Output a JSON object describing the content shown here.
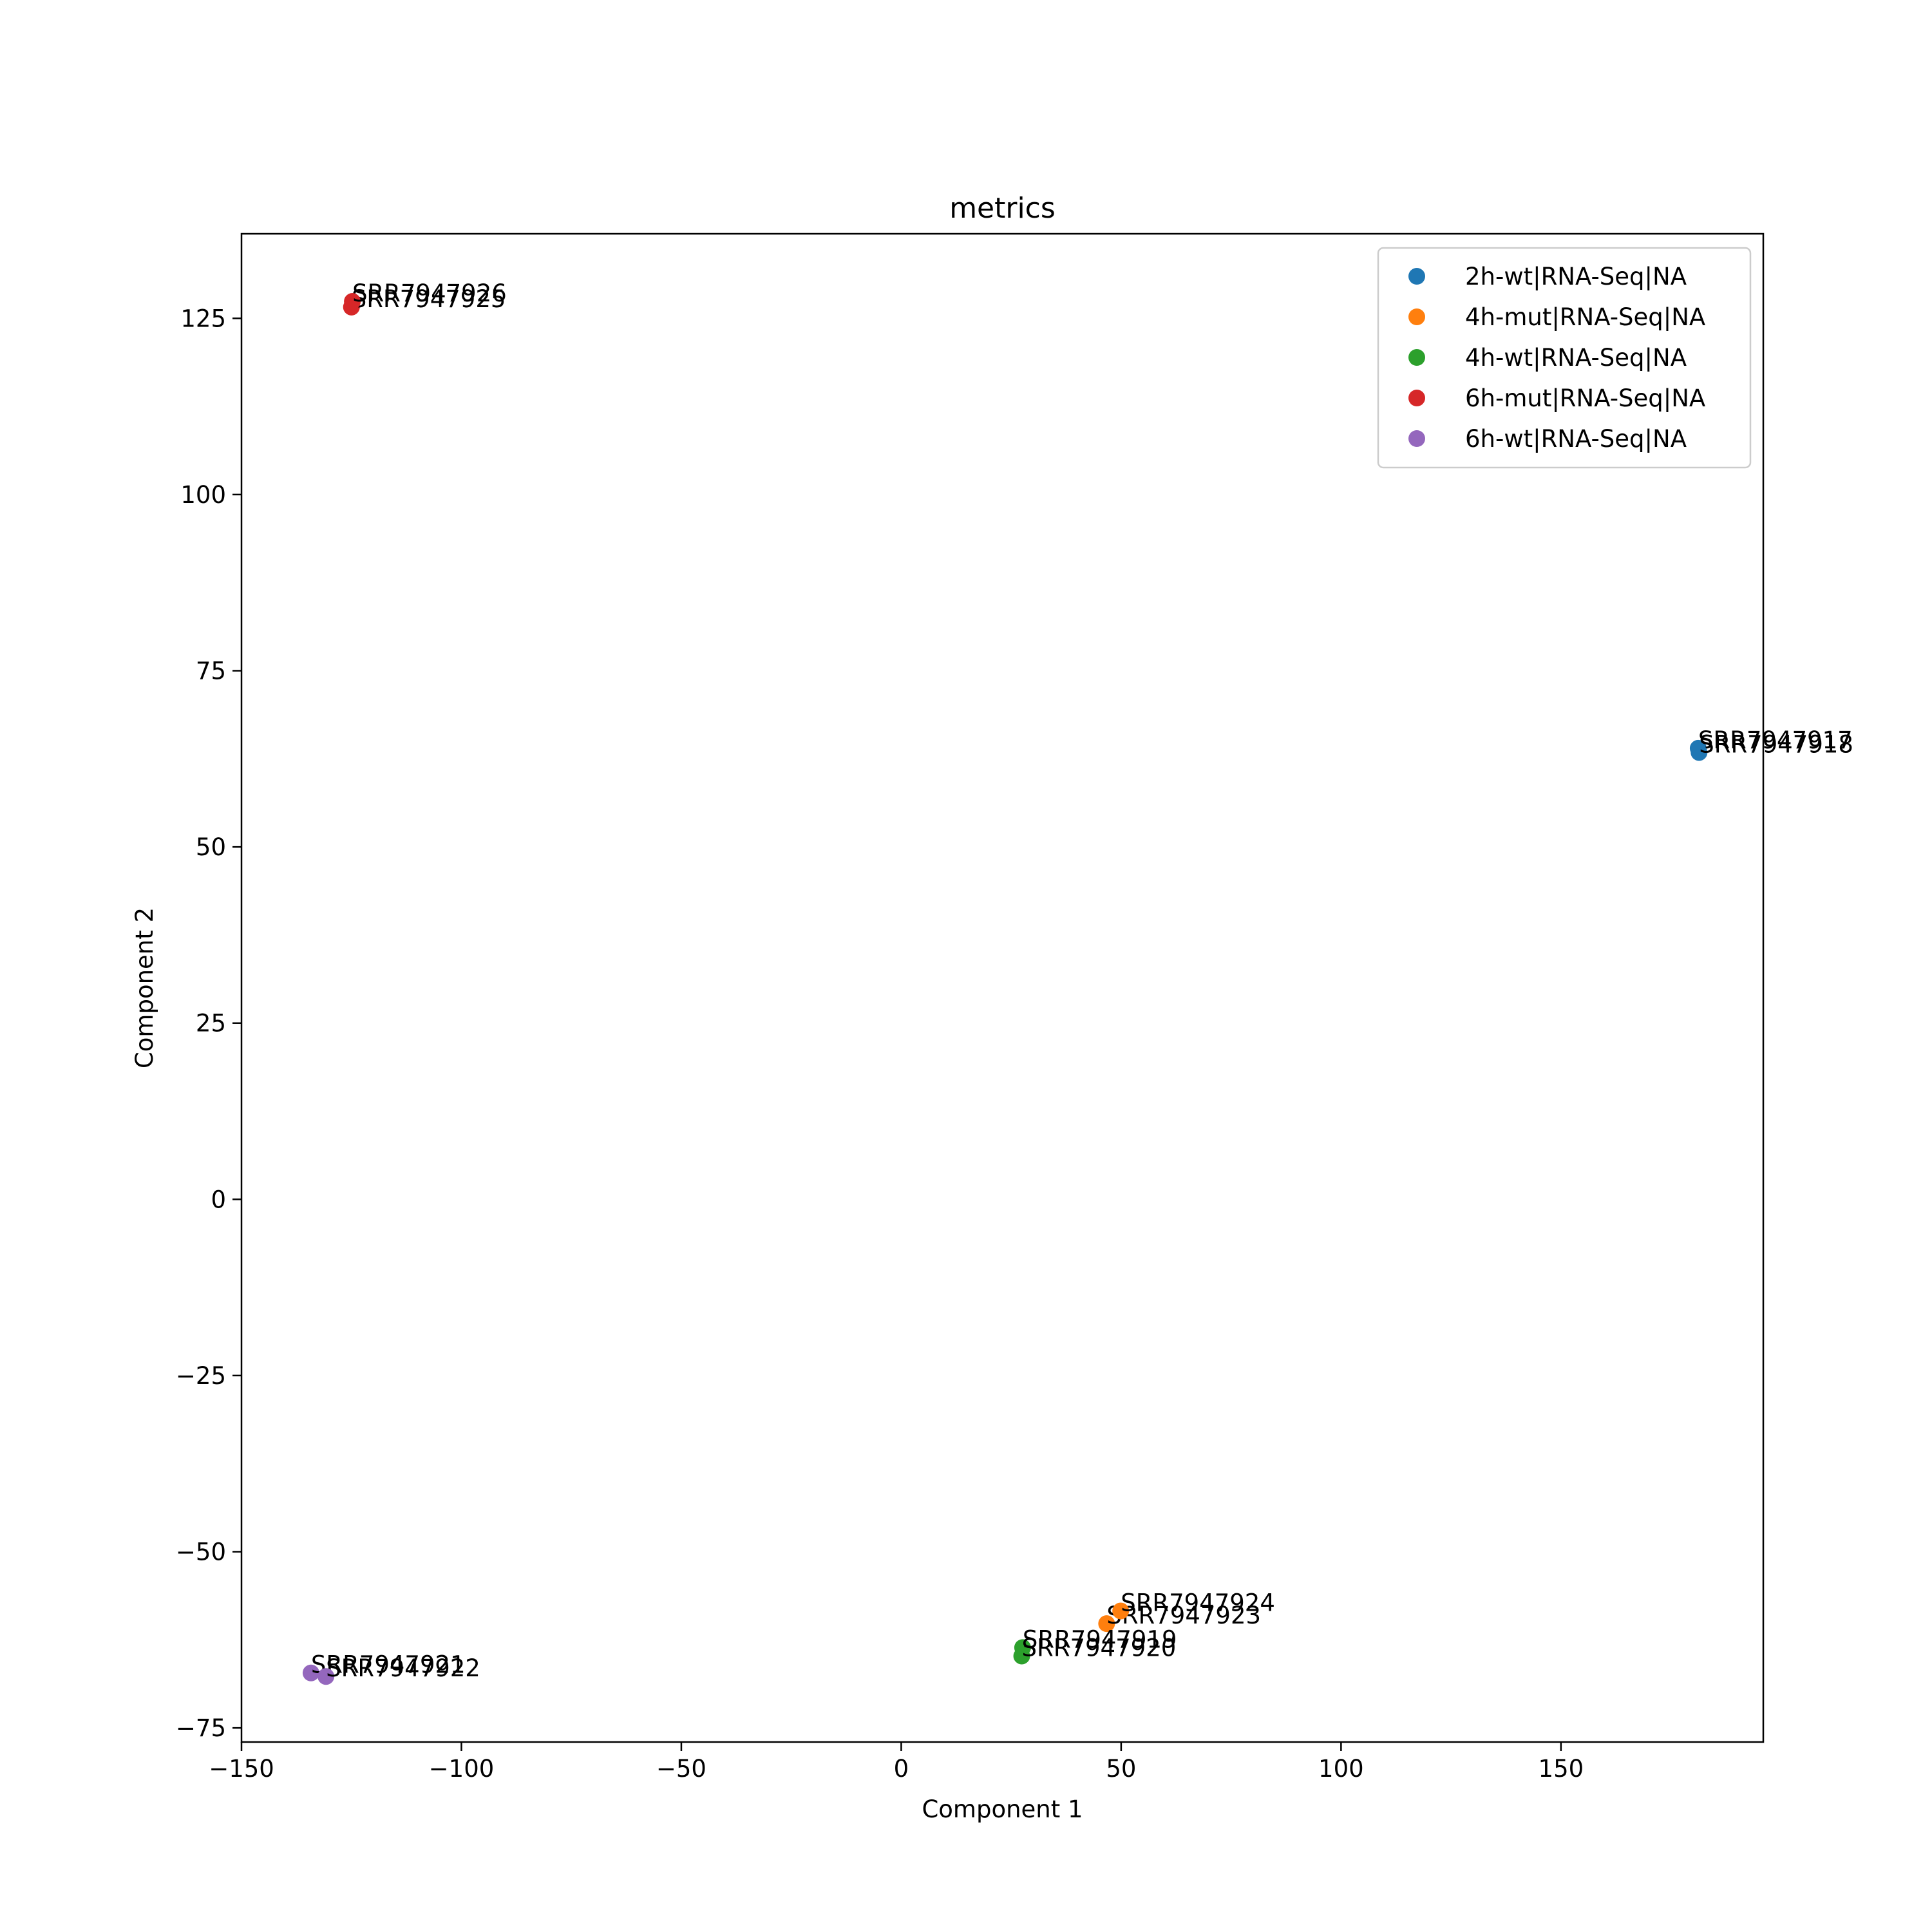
{
  "chart_data": {
    "type": "scatter",
    "title": "metrics",
    "xlabel": "Component 1",
    "ylabel": "Component 2",
    "xlim": [
      -150,
      196
    ],
    "ylim": [
      -77,
      137
    ],
    "xticks": [
      -150,
      -100,
      -50,
      0,
      50,
      100,
      150
    ],
    "yticks": [
      -75,
      -50,
      -25,
      0,
      25,
      50,
      75,
      100,
      125
    ],
    "grid": false,
    "legend_position": "top-right",
    "series": [
      {
        "name": "2h-wt|RNA-Seq|NA",
        "color": "#1f77b4",
        "points": [
          {
            "label": "SRR7947917",
            "x": 181.2,
            "y": 64.0
          },
          {
            "label": "SRR7947918",
            "x": 181.4,
            "y": 63.4
          }
        ]
      },
      {
        "name": "4h-mut|RNA-Seq|NA",
        "color": "#ff7f0e",
        "points": [
          {
            "label": "SRR7947923",
            "x": 46.7,
            "y": -60.2
          },
          {
            "label": "SRR7947924",
            "x": 49.9,
            "y": -58.4
          }
        ]
      },
      {
        "name": "4h-wt|RNA-Seq|NA",
        "color": "#2ca02c",
        "points": [
          {
            "label": "SRR7947919",
            "x": 27.6,
            "y": -63.6
          },
          {
            "label": "SRR7947920",
            "x": 27.4,
            "y": -64.8
          }
        ]
      },
      {
        "name": "6h-mut|RNA-Seq|NA",
        "color": "#d62728",
        "points": [
          {
            "label": "SRR7947925",
            "x": -125.0,
            "y": 126.6
          },
          {
            "label": "SRR7947926",
            "x": -124.8,
            "y": 127.4
          }
        ]
      },
      {
        "name": "6h-wt|RNA-Seq|NA",
        "color": "#9467bd",
        "points": [
          {
            "label": "SRR7947921",
            "x": -134.2,
            "y": -67.2
          },
          {
            "label": "SRR7947922",
            "x": -130.8,
            "y": -67.7
          }
        ]
      }
    ]
  }
}
